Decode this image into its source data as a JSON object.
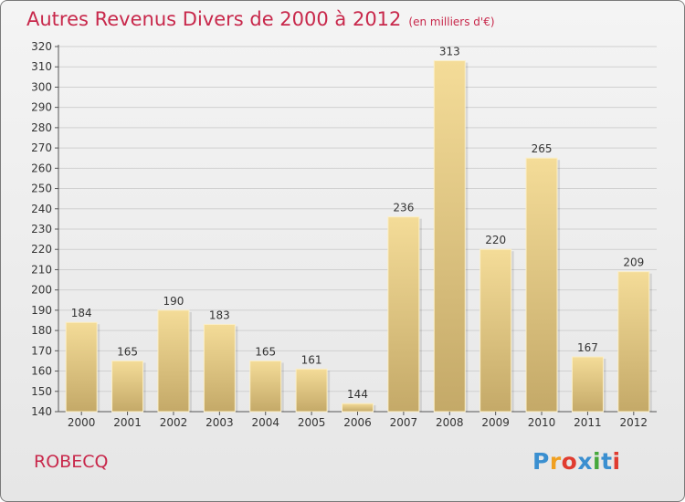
{
  "title": {
    "main": "Autres Revenus Divers de 2000 à 2012",
    "unit": "(en milliers d'€)"
  },
  "city": "ROBECQ",
  "brand": {
    "letters": [
      "P",
      "r",
      "o",
      "x",
      "i",
      "t",
      "i"
    ],
    "colors": [
      "#3a8fd0",
      "#f0a020",
      "#e03c30",
      "#3a8fd0",
      "#46a83c",
      "#3a8fd0",
      "#e03c30"
    ]
  },
  "chart_data": {
    "type": "bar",
    "categories": [
      "2000",
      "2001",
      "2002",
      "2003",
      "2004",
      "2005",
      "2006",
      "2007",
      "2008",
      "2009",
      "2010",
      "2011",
      "2012"
    ],
    "values": [
      184,
      165,
      190,
      183,
      165,
      161,
      144,
      236,
      313,
      220,
      265,
      167,
      209
    ],
    "ylim": [
      140,
      320
    ],
    "yticks": [
      140,
      150,
      160,
      170,
      180,
      190,
      200,
      210,
      220,
      230,
      240,
      250,
      260,
      270,
      280,
      290,
      300,
      310,
      320
    ],
    "grid": true,
    "colors": {
      "bar_top": "#f4dc98",
      "bar_bottom": "#c4a968",
      "grid": "#d0d0d0"
    }
  }
}
